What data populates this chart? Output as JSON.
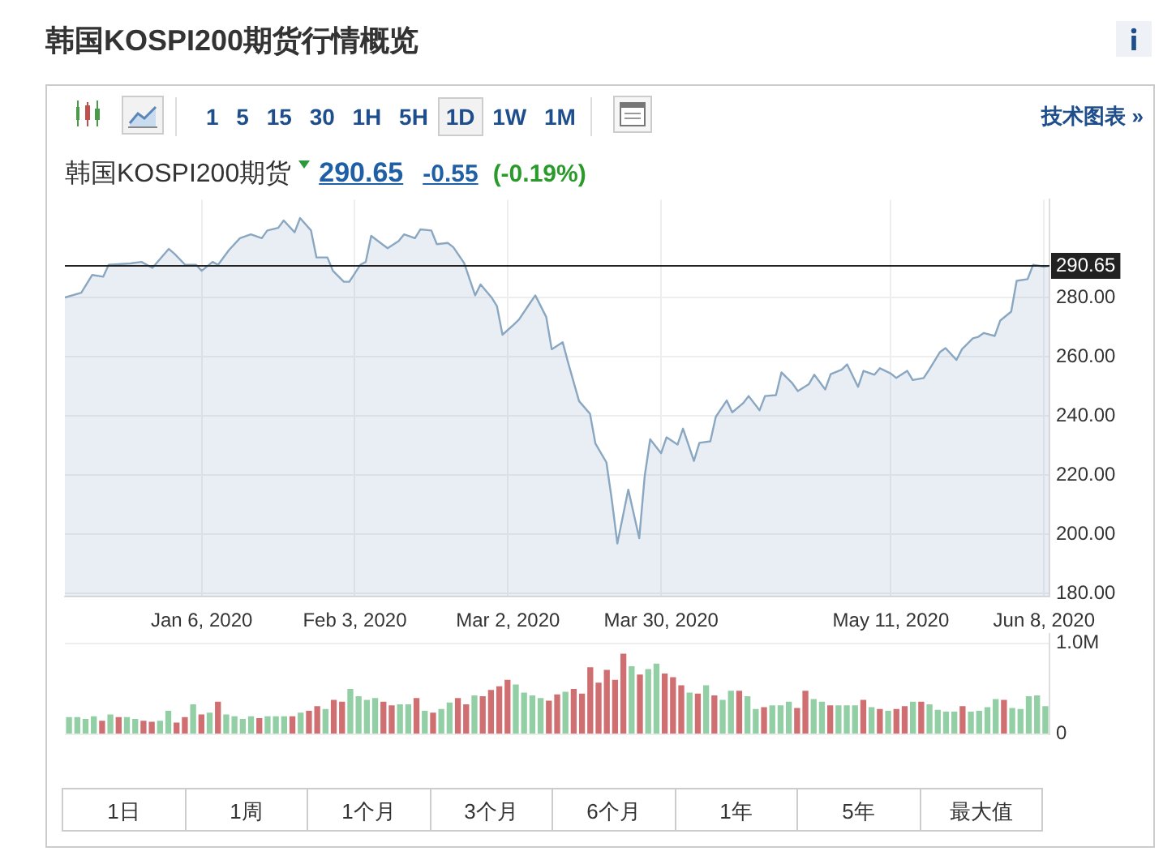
{
  "chart_data": [
    {
      "type": "area",
      "title": "韩国KOSPI200期货行情概览",
      "subtitle": "韩国KOSPI200期货",
      "annotations": [
        "290.65",
        "-0.55",
        "(-0.19%)"
      ],
      "xlim": [
        "2019-12-12",
        "2020-06-09"
      ],
      "xticks": [
        {
          "value": "2020-01-06",
          "label": "Jan 6, 2020"
        },
        {
          "value": "2020-02-03",
          "label": "Feb 3, 2020"
        },
        {
          "value": "2020-03-02",
          "label": "Mar 2, 2020"
        },
        {
          "value": "2020-03-30",
          "label": "Mar 30, 2020"
        },
        {
          "value": "2020-05-11",
          "label": "May 11, 2020"
        },
        {
          "value": "2020-06-08",
          "label": "Jun 8, 2020"
        }
      ],
      "ylim": [
        179,
        313
      ],
      "yticks": [
        {
          "value": 180,
          "label": "180.00"
        },
        {
          "value": 200,
          "label": "200.00"
        },
        {
          "value": 220,
          "label": "220.00"
        },
        {
          "value": 240,
          "label": "240.00"
        },
        {
          "value": 260,
          "label": "260.00"
        },
        {
          "value": 280,
          "label": "280.00"
        }
      ],
      "grid": true,
      "marker": "none",
      "ref_lines": [
        {
          "axis": "y",
          "value": 290.65,
          "label": "290.65",
          "color": "#222222"
        }
      ],
      "series": [
        {
          "color": "#8aa7c2",
          "x": [
            "2019-12-12",
            "2019-12-15",
            "2019-12-17",
            "2019-12-19",
            "2019-12-20",
            "2019-12-24",
            "2019-12-26",
            "2019-12-28",
            "2019-12-31",
            "2020-01-01",
            "2020-01-03",
            "2020-01-05",
            "2020-01-06",
            "2020-01-08",
            "2020-01-09",
            "2020-01-11",
            "2020-01-13",
            "2020-01-15",
            "2020-01-17",
            "2020-01-18",
            "2020-01-20",
            "2020-01-21",
            "2020-01-23",
            "2020-01-24",
            "2020-01-26",
            "2020-01-27",
            "2020-01-29",
            "2020-01-30",
            "2020-02-01",
            "2020-02-02",
            "2020-02-04",
            "2020-02-05",
            "2020-02-06",
            "2020-02-08",
            "2020-02-09",
            "2020-02-11",
            "2020-02-12",
            "2020-02-14",
            "2020-02-15",
            "2020-02-17",
            "2020-02-18",
            "2020-02-20",
            "2020-02-21",
            "2020-02-23",
            "2020-02-25",
            "2020-02-26",
            "2020-02-28",
            "2020-02-29",
            "2020-03-01",
            "2020-03-03",
            "2020-03-04",
            "2020-03-06",
            "2020-03-07",
            "2020-03-09",
            "2020-03-10",
            "2020-03-12",
            "2020-03-13",
            "2020-03-15",
            "2020-03-17",
            "2020-03-18",
            "2020-03-20",
            "2020-03-21",
            "2020-03-22",
            "2020-03-24",
            "2020-03-26",
            "2020-03-27",
            "2020-03-28",
            "2020-03-30",
            "2020-03-31",
            "2020-04-02",
            "2020-04-03",
            "2020-04-05",
            "2020-04-06",
            "2020-04-08",
            "2020-04-09",
            "2020-04-11",
            "2020-04-12",
            "2020-04-14",
            "2020-04-15",
            "2020-04-17",
            "2020-04-18",
            "2020-04-20",
            "2020-04-21",
            "2020-04-23",
            "2020-04-24",
            "2020-04-26",
            "2020-04-27",
            "2020-04-29",
            "2020-04-30",
            "2020-05-02",
            "2020-05-03",
            "2020-05-05",
            "2020-05-06",
            "2020-05-08",
            "2020-05-09",
            "2020-05-11",
            "2020-05-12",
            "2020-05-14",
            "2020-05-15",
            "2020-05-17",
            "2020-05-18",
            "2020-05-20",
            "2020-05-21",
            "2020-05-23",
            "2020-05-24",
            "2020-05-26",
            "2020-05-27",
            "2020-05-28",
            "2020-05-30",
            "2020-05-31",
            "2020-06-02",
            "2020-06-03",
            "2020-06-05",
            "2020-06-06",
            "2020-06-08",
            "2020-06-09"
          ],
          "values": [
            280.0,
            281.6,
            287.6,
            287.0,
            291.0,
            291.5,
            292.0,
            290.0,
            296.4,
            294.8,
            291.0,
            291.0,
            289.0,
            292.0,
            291.0,
            296.0,
            300.0,
            301.3,
            300.0,
            302.6,
            303.5,
            306.0,
            302.0,
            306.8,
            302.6,
            293.5,
            293.5,
            289.0,
            285.3,
            285.3,
            291.0,
            292.0,
            300.8,
            298.0,
            296.6,
            299.0,
            301.3,
            300.0,
            303.0,
            302.6,
            298.0,
            298.4,
            297.0,
            291.6,
            280.7,
            284.4,
            280.0,
            277.0,
            267.4,
            270.7,
            272.5,
            278.0,
            280.7,
            273.4,
            262.5,
            264.9,
            258.0,
            245.0,
            240.7,
            230.6,
            224.3,
            211.5,
            196.9,
            215.1,
            198.7,
            219.7,
            232.1,
            227.4,
            232.8,
            230.3,
            235.7,
            224.8,
            230.9,
            231.4,
            239.7,
            245.2,
            241.2,
            244.3,
            246.7,
            241.9,
            246.7,
            247.0,
            254.7,
            251.0,
            248.4,
            250.7,
            253.9,
            248.9,
            254.1,
            255.6,
            257.4,
            249.8,
            255.2,
            253.9,
            256.1,
            254.3,
            252.8,
            255.2,
            252.1,
            252.8,
            255.6,
            261.6,
            262.9,
            258.9,
            262.5,
            266.2,
            266.7,
            268.0,
            267.0,
            272.2,
            275.2,
            285.6,
            286.2,
            291.0,
            290.4,
            290.65
          ]
        }
      ]
    },
    {
      "type": "bar",
      "categories": [
        null,
        null,
        null,
        null,
        null,
        null,
        null,
        null,
        null,
        null,
        null,
        null,
        null,
        null,
        null,
        null,
        null,
        null,
        null,
        null,
        null,
        null,
        null,
        null,
        null,
        null,
        null,
        null,
        null,
        null,
        null,
        null,
        null,
        null,
        null,
        null,
        null,
        null,
        null,
        null,
        null,
        null,
        null,
        null,
        null,
        null,
        null,
        null,
        null,
        null,
        null,
        null,
        null,
        null,
        null,
        null,
        null,
        null,
        null,
        null,
        null,
        null,
        null,
        null,
        null,
        null,
        null,
        null,
        null,
        null,
        null,
        null,
        null,
        null,
        null,
        null,
        null,
        null,
        null,
        null,
        null,
        null,
        null,
        null,
        null,
        null,
        null,
        null,
        null,
        null,
        null,
        null,
        null,
        null,
        null,
        null,
        null,
        null,
        null,
        null,
        null,
        null,
        null,
        null,
        null,
        null,
        null,
        null,
        null,
        null,
        null,
        null,
        null,
        null,
        null,
        null,
        null,
        null,
        null
      ],
      "ylim": [
        0,
        1.1
      ],
      "yticks": [
        {
          "value": 0,
          "label": "0"
        },
        {
          "value": 1,
          "label": "1.0M"
        }
      ],
      "grid": "y",
      "values": [
        0.18,
        0.18,
        0.16,
        0.19,
        0.14,
        0.21,
        0.18,
        0.18,
        0.16,
        0.14,
        0.13,
        0.14,
        0.25,
        0.12,
        0.18,
        0.32,
        0.21,
        0.23,
        0.35,
        0.21,
        0.19,
        0.16,
        0.19,
        0.17,
        0.19,
        0.19,
        0.19,
        0.19,
        0.23,
        0.25,
        0.3,
        0.27,
        0.37,
        0.35,
        0.49,
        0.41,
        0.37,
        0.39,
        0.35,
        0.31,
        0.32,
        0.32,
        0.39,
        0.25,
        0.23,
        0.27,
        0.34,
        0.39,
        0.32,
        0.42,
        0.41,
        0.48,
        0.52,
        0.59,
        0.54,
        0.45,
        0.42,
        0.39,
        0.36,
        0.43,
        0.46,
        0.49,
        0.44,
        0.73,
        0.56,
        0.7,
        0.59,
        0.88,
        0.74,
        0.65,
        0.71,
        0.77,
        0.66,
        0.62,
        0.53,
        0.45,
        0.44,
        0.53,
        0.42,
        0.37,
        0.47,
        0.47,
        0.41,
        0.27,
        0.29,
        0.31,
        0.31,
        0.35,
        0.28,
        0.47,
        0.38,
        0.35,
        0.31,
        0.31,
        0.31,
        0.31,
        0.37,
        0.29,
        0.27,
        0.25,
        0.27,
        0.3,
        0.35,
        0.35,
        0.32,
        0.26,
        0.24,
        0.24,
        0.3,
        0.24,
        0.25,
        0.29,
        0.38,
        0.37,
        0.28,
        0.27,
        0.41,
        0.42,
        0.3
      ],
      "colors": [
        "#93cfa4",
        "#93cfa4",
        "#93cfa4",
        "#93cfa4",
        "#cf6f71",
        "#93cfa4",
        "#cf6f71",
        "#93cfa4",
        "#93cfa4",
        "#cf6f71",
        "#cf6f71",
        "#93cfa4",
        "#93cfa4",
        "#cf6f71",
        "#cf6f71",
        "#93cfa4",
        "#cf6f71",
        "#93cfa4",
        "#cf6f71",
        "#93cfa4",
        "#93cfa4",
        "#93cfa4",
        "#93cfa4",
        "#cf6f71",
        "#93cfa4",
        "#93cfa4",
        "#93cfa4",
        "#cf6f71",
        "#93cfa4",
        "#cf6f71",
        "#cf6f71",
        "#93cfa4",
        "#cf6f71",
        "#cf6f71",
        "#93cfa4",
        "#93cfa4",
        "#93cfa4",
        "#93cfa4",
        "#cf6f71",
        "#cf6f71",
        "#93cfa4",
        "#93cfa4",
        "#cf6f71",
        "#93cfa4",
        "#cf6f71",
        "#93cfa4",
        "#93cfa4",
        "#cf6f71",
        "#cf6f71",
        "#93cfa4",
        "#cf6f71",
        "#cf6f71",
        "#cf6f71",
        "#cf6f71",
        "#93cfa4",
        "#93cfa4",
        "#93cfa4",
        "#93cfa4",
        "#cf6f71",
        "#cf6f71",
        "#93cfa4",
        "#cf6f71",
        "#cf6f71",
        "#cf6f71",
        "#cf6f71",
        "#cf6f71",
        "#cf6f71",
        "#cf6f71",
        "#93cfa4",
        "#cf6f71",
        "#93cfa4",
        "#93cfa4",
        "#cf6f71",
        "#cf6f71",
        "#cf6f71",
        "#93cfa4",
        "#cf6f71",
        "#93cfa4",
        "#cf6f71",
        "#93cfa4",
        "#93cfa4",
        "#cf6f71",
        "#93cfa4",
        "#93cfa4",
        "#cf6f71",
        "#93cfa4",
        "#93cfa4",
        "#93cfa4",
        "#cf6f71",
        "#cf6f71",
        "#93cfa4",
        "#93cfa4",
        "#cf6f71",
        "#93cfa4",
        "#93cfa4",
        "#93cfa4",
        "#cf6f71",
        "#93cfa4",
        "#cf6f71",
        "#93cfa4",
        "#cf6f71",
        "#cf6f71",
        "#93cfa4",
        "#cf6f71",
        "#93cfa4",
        "#93cfa4",
        "#93cfa4",
        "#93cfa4",
        "#cf6f71",
        "#93cfa4",
        "#93cfa4",
        "#93cfa4",
        "#93cfa4",
        "#cf6f71",
        "#93cfa4",
        "#93cfa4",
        "#93cfa4",
        "#93cfa4",
        "#93cfa4"
      ]
    },
    {
      "type": "other",
      "annotations": [
        "1 5 15 30 1H 5H 1D 1W 1M",
        "技术图表 »"
      ]
    },
    {
      "type": "other",
      "annotations": [
        "1日",
        "1周",
        "1个月",
        "3个月",
        "6个月",
        "1年",
        "5年",
        "最大值"
      ]
    }
  ]
}
